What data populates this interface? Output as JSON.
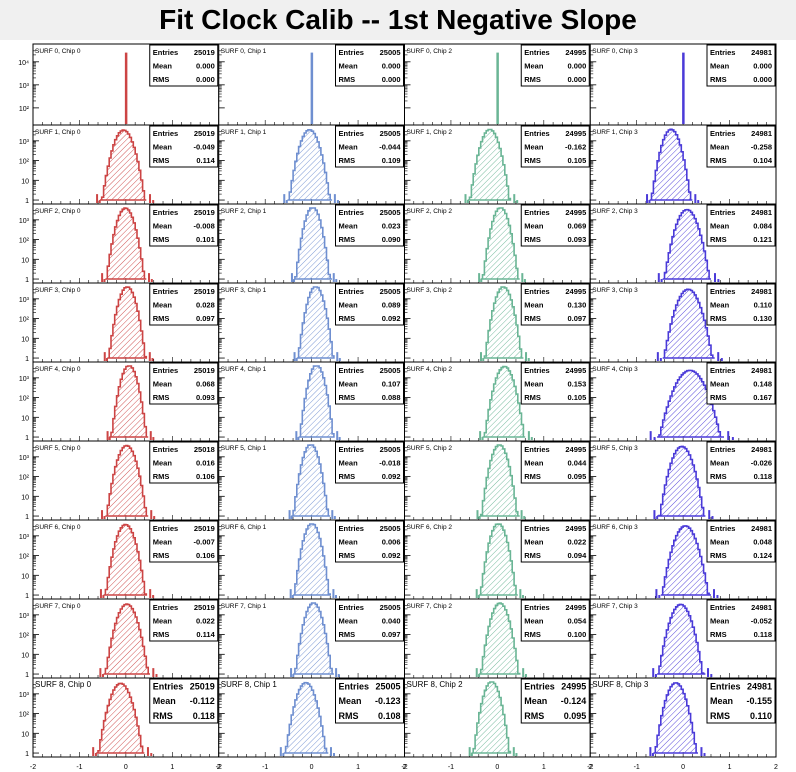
{
  "title": "Fit Clock Calib -- 1st Negative Slope",
  "colors": {
    "chip0": "#cc4444",
    "chip1": "#6f8fd0",
    "chip2": "#6ab595",
    "chip3": "#4a3ad8"
  },
  "stat_labels": {
    "entries": "Entries",
    "mean": "Mean",
    "rms": "RMS"
  },
  "chart_data": {
    "type": "histogram-grid",
    "rows": 9,
    "cols": 4,
    "x_range": [
      -2,
      2
    ],
    "y_scale": "log",
    "x_tick_labels": [
      "-2",
      "-1",
      "0",
      "1",
      "2"
    ],
    "y_tick_labels": [
      "1",
      "10",
      "10²",
      "10³"
    ],
    "y_tick_labels_row0": [
      "10²",
      "10³",
      "10⁴"
    ],
    "panels": [
      {
        "label": "SURF 0, Chip 0",
        "entries": "25019",
        "mean": "0.000",
        "rms": "0.000",
        "color": "chip0",
        "shape": "spike",
        "mu": 0.0,
        "sigma": 0.0
      },
      {
        "label": "SURF 0, Chip 1",
        "entries": "25005",
        "mean": "0.000",
        "rms": "0.000",
        "color": "chip1",
        "shape": "spike",
        "mu": 0.0,
        "sigma": 0.0
      },
      {
        "label": "SURF 0, Chip 2",
        "entries": "24995",
        "mean": "0.000",
        "rms": "0.000",
        "color": "chip2",
        "shape": "spike",
        "mu": 0.0,
        "sigma": 0.0
      },
      {
        "label": "SURF 0, Chip 3",
        "entries": "24981",
        "mean": "0.000",
        "rms": "0.000",
        "color": "chip3",
        "shape": "spike",
        "mu": 0.0,
        "sigma": 0.0
      },
      {
        "label": "SURF 1, Chip 0",
        "entries": "25019",
        "mean": "-0.049",
        "rms": "0.114",
        "color": "chip0",
        "shape": "gauss",
        "mu": -0.049,
        "sigma": 0.114
      },
      {
        "label": "SURF 1, Chip 1",
        "entries": "25005",
        "mean": "-0.044",
        "rms": "0.109",
        "color": "chip1",
        "shape": "gauss",
        "mu": -0.044,
        "sigma": 0.109
      },
      {
        "label": "SURF 1, Chip 2",
        "entries": "24995",
        "mean": "-0.162",
        "rms": "0.105",
        "color": "chip2",
        "shape": "gauss",
        "mu": -0.162,
        "sigma": 0.105
      },
      {
        "label": "SURF 1, Chip 3",
        "entries": "24981",
        "mean": "-0.258",
        "rms": "0.104",
        "color": "chip3",
        "shape": "gauss",
        "mu": -0.258,
        "sigma": 0.104
      },
      {
        "label": "SURF 2, Chip 0",
        "entries": "25019",
        "mean": "-0.008",
        "rms": "0.101",
        "color": "chip0",
        "shape": "gauss",
        "mu": -0.008,
        "sigma": 0.101
      },
      {
        "label": "SURF 2, Chip 1",
        "entries": "25005",
        "mean": "0.023",
        "rms": "0.090",
        "color": "chip1",
        "shape": "gauss",
        "mu": 0.023,
        "sigma": 0.09
      },
      {
        "label": "SURF 2, Chip 2",
        "entries": "24995",
        "mean": "0.069",
        "rms": "0.093",
        "color": "chip2",
        "shape": "gauss",
        "mu": 0.069,
        "sigma": 0.093
      },
      {
        "label": "SURF 2, Chip 3",
        "entries": "24981",
        "mean": "0.084",
        "rms": "0.121",
        "color": "chip3",
        "shape": "gauss",
        "mu": 0.084,
        "sigma": 0.121
      },
      {
        "label": "SURF 3, Chip 0",
        "entries": "25019",
        "mean": "0.028",
        "rms": "0.097",
        "color": "chip0",
        "shape": "gauss",
        "mu": 0.028,
        "sigma": 0.097
      },
      {
        "label": "SURF 3, Chip 1",
        "entries": "25005",
        "mean": "0.089",
        "rms": "0.092",
        "color": "chip1",
        "shape": "gauss",
        "mu": 0.089,
        "sigma": 0.092
      },
      {
        "label": "SURF 3, Chip 2",
        "entries": "24995",
        "mean": "0.130",
        "rms": "0.097",
        "color": "chip2",
        "shape": "gauss",
        "mu": 0.13,
        "sigma": 0.097
      },
      {
        "label": "SURF 3, Chip 3",
        "entries": "24981",
        "mean": "0.110",
        "rms": "0.130",
        "color": "chip3",
        "shape": "gauss",
        "mu": 0.11,
        "sigma": 0.13
      },
      {
        "label": "SURF 4, Chip 0",
        "entries": "25019",
        "mean": "0.068",
        "rms": "0.093",
        "color": "chip0",
        "shape": "gauss",
        "mu": 0.068,
        "sigma": 0.093
      },
      {
        "label": "SURF 4, Chip 1",
        "entries": "25005",
        "mean": "0.107",
        "rms": "0.088",
        "color": "chip1",
        "shape": "gauss",
        "mu": 0.107,
        "sigma": 0.088
      },
      {
        "label": "SURF 4, Chip 2",
        "entries": "24995",
        "mean": "0.153",
        "rms": "0.105",
        "color": "chip2",
        "shape": "gauss",
        "mu": 0.153,
        "sigma": 0.105
      },
      {
        "label": "SURF 4, Chip 3",
        "entries": "24981",
        "mean": "0.148",
        "rms": "0.167",
        "color": "chip3",
        "shape": "gauss",
        "mu": 0.148,
        "sigma": 0.167
      },
      {
        "label": "SURF 5, Chip 0",
        "entries": "25018",
        "mean": "0.016",
        "rms": "0.106",
        "color": "chip0",
        "shape": "gauss",
        "mu": 0.016,
        "sigma": 0.106
      },
      {
        "label": "SURF 5, Chip 1",
        "entries": "25005",
        "mean": "-0.018",
        "rms": "0.092",
        "color": "chip1",
        "shape": "gauss",
        "mu": -0.018,
        "sigma": 0.092
      },
      {
        "label": "SURF 5, Chip 2",
        "entries": "24995",
        "mean": "0.044",
        "rms": "0.095",
        "color": "chip2",
        "shape": "gauss",
        "mu": 0.044,
        "sigma": 0.095
      },
      {
        "label": "SURF 5, Chip 3",
        "entries": "24981",
        "mean": "-0.026",
        "rms": "0.118",
        "color": "chip3",
        "shape": "gauss",
        "mu": -0.026,
        "sigma": 0.118
      },
      {
        "label": "SURF 6, Chip 0",
        "entries": "25019",
        "mean": "-0.007",
        "rms": "0.106",
        "color": "chip0",
        "shape": "gauss",
        "mu": -0.007,
        "sigma": 0.106
      },
      {
        "label": "SURF 6, Chip 1",
        "entries": "25005",
        "mean": "0.006",
        "rms": "0.092",
        "color": "chip1",
        "shape": "gauss",
        "mu": 0.006,
        "sigma": 0.092
      },
      {
        "label": "SURF 6, Chip 2",
        "entries": "24995",
        "mean": "0.022",
        "rms": "0.094",
        "color": "chip2",
        "shape": "gauss",
        "mu": 0.022,
        "sigma": 0.094
      },
      {
        "label": "SURF 6, Chip 3",
        "entries": "24981",
        "mean": "0.048",
        "rms": "0.124",
        "color": "chip3",
        "shape": "gauss",
        "mu": 0.048,
        "sigma": 0.124
      },
      {
        "label": "SURF 7, Chip 0",
        "entries": "25019",
        "mean": "0.022",
        "rms": "0.114",
        "color": "chip0",
        "shape": "gauss",
        "mu": 0.022,
        "sigma": 0.114
      },
      {
        "label": "SURF 7, Chip 1",
        "entries": "25005",
        "mean": "0.040",
        "rms": "0.097",
        "color": "chip1",
        "shape": "gauss",
        "mu": 0.04,
        "sigma": 0.097
      },
      {
        "label": "SURF 7, Chip 2",
        "entries": "24995",
        "mean": "0.054",
        "rms": "0.100",
        "color": "chip2",
        "shape": "gauss",
        "mu": 0.054,
        "sigma": 0.1
      },
      {
        "label": "SURF 7, Chip 3",
        "entries": "24981",
        "mean": "-0.052",
        "rms": "0.118",
        "color": "chip3",
        "shape": "gauss",
        "mu": -0.052,
        "sigma": 0.118
      },
      {
        "label": "SURF 8, Chip 0",
        "entries": "25019",
        "mean": "-0.112",
        "rms": "0.118",
        "color": "chip0",
        "shape": "gauss",
        "mu": -0.112,
        "sigma": 0.118
      },
      {
        "label": "SURF 8, Chip 1",
        "entries": "25005",
        "mean": "-0.123",
        "rms": "0.108",
        "color": "chip1",
        "shape": "gauss",
        "mu": -0.123,
        "sigma": 0.108
      },
      {
        "label": "SURF 8, Chip 2",
        "entries": "24995",
        "mean": "-0.124",
        "rms": "0.095",
        "color": "chip2",
        "shape": "gauss",
        "mu": -0.124,
        "sigma": 0.095
      },
      {
        "label": "SURF 8, Chip 3",
        "entries": "24981",
        "mean": "-0.155",
        "rms": "0.110",
        "color": "chip3",
        "shape": "gauss",
        "mu": -0.155,
        "sigma": 0.11
      }
    ]
  }
}
